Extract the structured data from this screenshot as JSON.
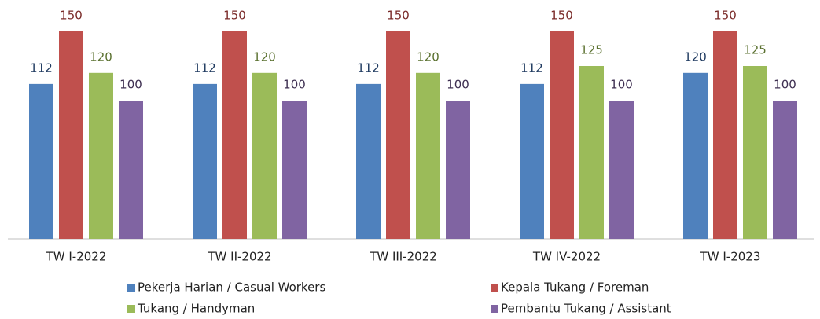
{
  "chart_data": {
    "type": "bar",
    "categories": [
      "TW I-2022",
      "TW II-2022",
      "TW III-2022",
      "TW IV-2022",
      "TW I-2023"
    ],
    "series": [
      {
        "name": "Pekerja Harian / Casual Workers",
        "color": "#4f81bd",
        "label_color": "#1f3a60",
        "values": [
          112,
          112,
          112,
          112,
          120
        ]
      },
      {
        "name": "Kepala Tukang / Foreman",
        "color": "#c0504d",
        "label_color": "#7a2b29",
        "values": [
          150,
          150,
          150,
          150,
          150
        ]
      },
      {
        "name": "Tukang / Handyman",
        "color": "#9bbb59",
        "label_color": "#5b7130",
        "values": [
          120,
          120,
          120,
          125,
          125
        ]
      },
      {
        "name": "Pembantu Tukang / Assistant",
        "color": "#8064a2",
        "label_color": "#3f3052",
        "values": [
          100,
          100,
          100,
          100,
          100
        ]
      }
    ],
    "ylim": [
      0,
      160
    ],
    "grid": false
  }
}
